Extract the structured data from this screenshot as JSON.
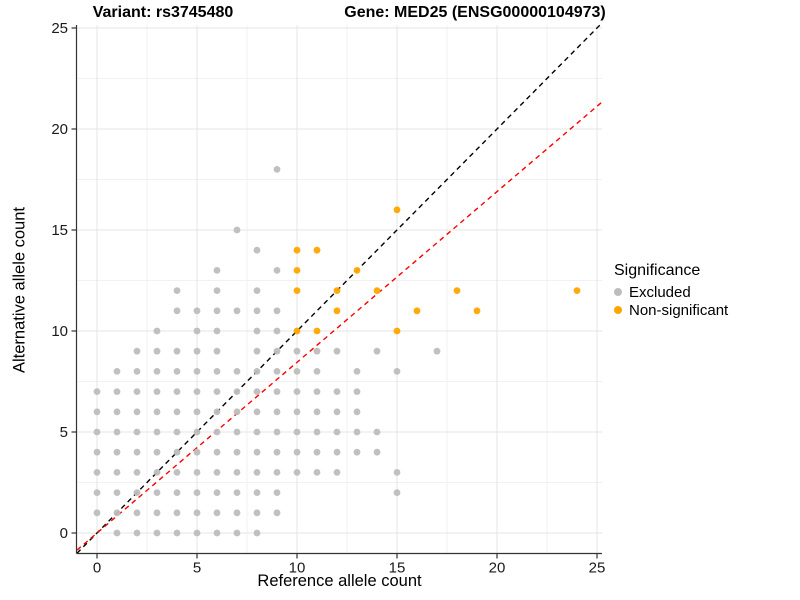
{
  "titles": {
    "variant": "Variant: rs3745480",
    "gene": "Gene: MED25 (ENSG00000104973)"
  },
  "chart_data": {
    "type": "scatter",
    "xlabel": "Reference allele count",
    "ylabel": "Alternative allele count",
    "xlim": [
      -1,
      25.25
    ],
    "ylim": [
      -1,
      25.15
    ],
    "x_ticks": [
      0,
      5,
      10,
      15,
      20,
      25
    ],
    "y_ticks": [
      0,
      5,
      10,
      15,
      20,
      25
    ],
    "grid": {
      "major_every": 5,
      "minor_every": 2.5,
      "major_color": "#e4e4e4",
      "minor_color": "#f1f1f1"
    },
    "legend": {
      "title": "Significance",
      "position": "right",
      "entries": [
        {
          "label": "Excluded",
          "color": "#bdbdbd"
        },
        {
          "label": "Non-significant",
          "color": "#ffa500"
        }
      ]
    },
    "lines": [
      {
        "name": "identity-line",
        "slope": 1,
        "intercept": 0,
        "style": "dashed",
        "color": "#000000"
      },
      {
        "name": "expected-ratio-line",
        "slope": 0.845,
        "intercept": 0,
        "style": "dashed",
        "color": "#ff0000"
      }
    ],
    "series": [
      {
        "name": "Excluded",
        "color": "#bdbdbd",
        "points": [
          [
            9,
            18
          ],
          [
            7,
            15
          ],
          [
            8,
            14
          ],
          [
            6,
            13
          ],
          [
            9,
            13
          ],
          [
            4,
            12
          ],
          [
            6,
            12
          ],
          [
            8,
            12
          ],
          [
            4,
            11
          ],
          [
            5,
            11
          ],
          [
            6,
            11
          ],
          [
            7,
            11
          ],
          [
            8,
            11
          ],
          [
            9,
            11
          ],
          [
            3,
            10
          ],
          [
            5,
            10
          ],
          [
            6,
            10
          ],
          [
            8,
            10
          ],
          [
            9,
            10
          ],
          [
            2,
            9
          ],
          [
            3,
            9
          ],
          [
            4,
            9
          ],
          [
            5,
            9
          ],
          [
            6,
            9
          ],
          [
            8,
            9
          ],
          [
            9,
            9
          ],
          [
            10,
            9
          ],
          [
            11,
            9
          ],
          [
            12,
            9
          ],
          [
            14,
            9
          ],
          [
            17,
            9
          ],
          [
            1,
            8
          ],
          [
            2,
            8
          ],
          [
            3,
            8
          ],
          [
            4,
            8
          ],
          [
            5,
            8
          ],
          [
            6,
            8
          ],
          [
            7,
            8
          ],
          [
            8,
            8
          ],
          [
            9,
            8
          ],
          [
            10,
            8
          ],
          [
            11,
            8
          ],
          [
            13,
            8
          ],
          [
            15,
            8
          ],
          [
            0,
            7
          ],
          [
            1,
            7
          ],
          [
            2,
            7
          ],
          [
            3,
            7
          ],
          [
            4,
            7
          ],
          [
            5,
            7
          ],
          [
            6,
            7
          ],
          [
            7,
            7
          ],
          [
            8,
            7
          ],
          [
            9,
            7
          ],
          [
            10,
            7
          ],
          [
            11,
            7
          ],
          [
            12,
            7
          ],
          [
            13,
            7
          ],
          [
            0,
            6
          ],
          [
            1,
            6
          ],
          [
            2,
            6
          ],
          [
            3,
            6
          ],
          [
            4,
            6
          ],
          [
            5,
            6
          ],
          [
            6,
            6
          ],
          [
            7,
            6
          ],
          [
            8,
            6
          ],
          [
            9,
            6
          ],
          [
            10,
            6
          ],
          [
            11,
            6
          ],
          [
            12,
            6
          ],
          [
            13,
            6
          ],
          [
            0,
            5
          ],
          [
            1,
            5
          ],
          [
            2,
            5
          ],
          [
            3,
            5
          ],
          [
            4,
            5
          ],
          [
            5,
            5
          ],
          [
            6,
            5
          ],
          [
            7,
            5
          ],
          [
            8,
            5
          ],
          [
            9,
            5
          ],
          [
            10,
            5
          ],
          [
            11,
            5
          ],
          [
            12,
            5
          ],
          [
            13,
            5
          ],
          [
            14,
            5
          ],
          [
            0,
            4
          ],
          [
            1,
            4
          ],
          [
            2,
            4
          ],
          [
            3,
            4
          ],
          [
            4,
            4
          ],
          [
            5,
            4
          ],
          [
            6,
            4
          ],
          [
            7,
            4
          ],
          [
            8,
            4
          ],
          [
            9,
            4
          ],
          [
            10,
            4
          ],
          [
            11,
            4
          ],
          [
            12,
            4
          ],
          [
            13,
            4
          ],
          [
            14,
            4
          ],
          [
            0,
            3
          ],
          [
            1,
            3
          ],
          [
            2,
            3
          ],
          [
            3,
            3
          ],
          [
            4,
            3
          ],
          [
            5,
            3
          ],
          [
            6,
            3
          ],
          [
            7,
            3
          ],
          [
            8,
            3
          ],
          [
            9,
            3
          ],
          [
            10,
            3
          ],
          [
            11,
            3
          ],
          [
            12,
            3
          ],
          [
            15,
            3
          ],
          [
            0,
            2
          ],
          [
            1,
            2
          ],
          [
            2,
            2
          ],
          [
            3,
            2
          ],
          [
            4,
            2
          ],
          [
            5,
            2
          ],
          [
            6,
            2
          ],
          [
            7,
            2
          ],
          [
            8,
            2
          ],
          [
            9,
            2
          ],
          [
            15,
            2
          ],
          [
            0,
            1
          ],
          [
            1,
            1
          ],
          [
            2,
            1
          ],
          [
            3,
            1
          ],
          [
            4,
            1
          ],
          [
            5,
            1
          ],
          [
            6,
            1
          ],
          [
            7,
            1
          ],
          [
            8,
            1
          ],
          [
            9,
            1
          ],
          [
            1,
            0
          ],
          [
            2,
            0
          ],
          [
            3,
            0
          ],
          [
            4,
            0
          ],
          [
            5,
            0
          ],
          [
            6,
            0
          ],
          [
            7,
            0
          ],
          [
            8,
            0
          ]
        ]
      },
      {
        "name": "Non-significant",
        "color": "#ffa500",
        "points": [
          [
            15,
            16
          ],
          [
            10,
            14
          ],
          [
            11,
            14
          ],
          [
            10,
            13
          ],
          [
            13,
            13
          ],
          [
            10,
            12
          ],
          [
            12,
            12
          ],
          [
            14,
            12
          ],
          [
            18,
            12
          ],
          [
            24,
            12
          ],
          [
            12,
            11
          ],
          [
            16,
            11
          ],
          [
            19,
            11
          ],
          [
            10,
            10
          ],
          [
            11,
            10
          ],
          [
            15,
            10
          ]
        ]
      }
    ]
  }
}
